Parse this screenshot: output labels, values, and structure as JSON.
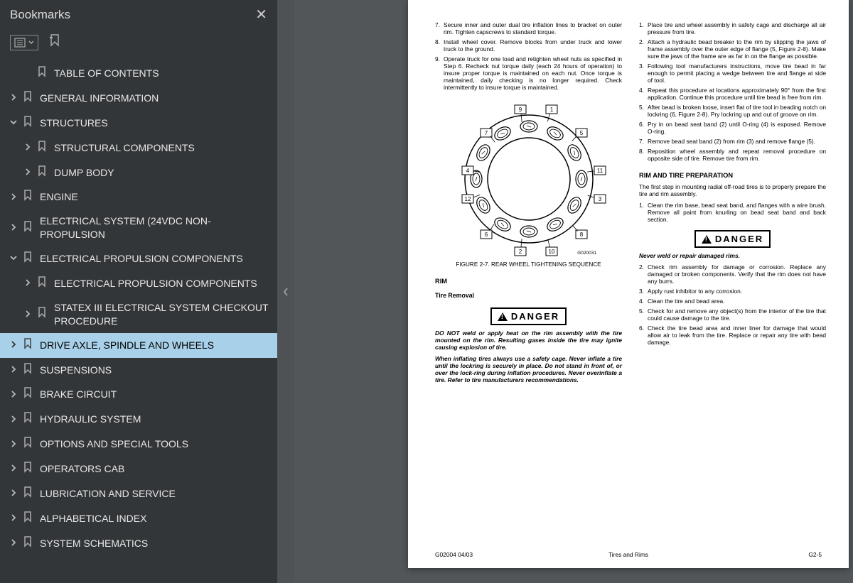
{
  "sidebar": {
    "title": "Bookmarks",
    "items": [
      {
        "label": "TABLE OF CONTENTS",
        "chev": "",
        "indent": 1
      },
      {
        "label": "GENERAL INFORMATION",
        "chev": "›",
        "indent": 0
      },
      {
        "label": "STRUCTURES",
        "chev": "⌄",
        "indent": 0
      },
      {
        "label": "STRUCTURAL COMPONENTS",
        "chev": "›",
        "indent": 1
      },
      {
        "label": "DUMP BODY",
        "chev": "›",
        "indent": 1
      },
      {
        "label": "ENGINE",
        "chev": "›",
        "indent": 0
      },
      {
        "label": "ELECTRICAL SYSTEM (24VDC NON-PROPULSION",
        "chev": "›",
        "indent": 0
      },
      {
        "label": "ELECTRICAL PROPULSION COMPONENTS",
        "chev": "⌄",
        "indent": 0
      },
      {
        "label": "ELECTRICAL PROPULSION COMPONENTS",
        "chev": "›",
        "indent": 1
      },
      {
        "label": "STATEX III ELECTRICAL SYSTEM CHECKOUT PROCEDURE",
        "chev": "›",
        "indent": 1
      },
      {
        "label": "DRIVE AXLE, SPINDLE AND WHEELS",
        "chev": "›",
        "indent": 0,
        "selected": true
      },
      {
        "label": "SUSPENSIONS",
        "chev": "›",
        "indent": 0
      },
      {
        "label": "BRAKE CIRCUIT",
        "chev": "›",
        "indent": 0
      },
      {
        "label": "HYDRAULIC SYSTEM",
        "chev": "›",
        "indent": 0
      },
      {
        "label": "OPTIONS AND SPECIAL TOOLS",
        "chev": "›",
        "indent": 0
      },
      {
        "label": "OPERATORS CAB",
        "chev": "›",
        "indent": 0
      },
      {
        "label": "LUBRICATION AND SERVICE",
        "chev": "›",
        "indent": 0
      },
      {
        "label": "ALPHABETICAL INDEX",
        "chev": "›",
        "indent": 0
      },
      {
        "label": "SYSTEM SCHEMATICS",
        "chev": "›",
        "indent": 0
      }
    ]
  },
  "colors": {
    "sidebar_bg": "#333639",
    "selected_bg": "#a8d0e8",
    "page_bg": "#ffffff",
    "doc_bg": "#525659"
  },
  "doc": {
    "left_list1": [
      {
        "n": "7.",
        "t": "Secure inner and outer dual tire inflation lines to bracket on outer rim. Tighten capscrews to standard torque."
      },
      {
        "n": "8.",
        "t": "Install wheel cover. Remove blocks from under truck and lower truck to the ground."
      },
      {
        "n": "9.",
        "t": "Operate truck for one load and retighten wheel nuts as specified in Step 6. Recheck nut torque daily (each 24 hours of operation) to insure proper torque is maintained on each nut. Once torque is maintained, daily checking is no longer required. Check intermittently to insure torque is maintained."
      }
    ],
    "figure": {
      "caption": "FIGURE 2-7. REAR WHEEL TIGHTENING SEQUENCE",
      "labels": [
        "9",
        "1",
        "7",
        "5",
        "4",
        "11",
        "12",
        "3",
        "6",
        "8",
        "2",
        "10"
      ],
      "code": "G020031",
      "nut_count": 12
    },
    "rim_heading": "RIM",
    "tire_removal": "Tire Removal",
    "danger1": "DANGER",
    "warn1a": "DO NOT weld or apply heat on the rim assembly with the tire mounted on the rim. Resulting gases inside the tire may ignite causing explosion of tire.",
    "warn1b": "When inflating tires always use a safety cage. Never inflate a tire until the lockring is securely in place. Do not stand in front of, or over the lock-ring during inflation procedures. Never overinflate a tire. Refer to tire manufacturers recommendations.",
    "right_list1": [
      {
        "n": "1.",
        "t": "Place tire and wheel assembly in safety cage and discharge all air pressure from tire."
      },
      {
        "n": "2.",
        "t": "Attach a hydraulic bead breaker to the rim by slipping the jaws of frame assembly over the outer edge of flange (5, Figure 2-8). Make sure the jaws of the frame are as far in on the flange as possible."
      },
      {
        "n": "3.",
        "t": "Following tool manufacturers instructions, move tire bead in far enough to permit placing a wedge between tire and flange at side of tool."
      },
      {
        "n": "4.",
        "t": "Repeat this procedure at locations approximately 90° from the first application. Continue this procedure until tire bead is free from rim."
      },
      {
        "n": "5.",
        "t": "After bead is broken loose, insert flat of tire tool in beading notch on lockring (6, Figure 2-8). Pry lockring up and out of groove on rim."
      },
      {
        "n": "6.",
        "t": "Pry in on bead seat band (2) until O-ring (4) is exposed. Remove O-ring."
      },
      {
        "n": "7.",
        "t": "Remove bead seat band (2) from rim (3) and remove flange (5)."
      },
      {
        "n": "8.",
        "t": "Reposition wheel assembly and repeat removal procedure on opposite side of tire. Remove tire from rim."
      }
    ],
    "prep_heading": "RIM AND TIRE PREPARATION",
    "prep_intro": "The first step in mounting radial off-road tires is to properly prepare the tire and rim assembly.",
    "prep_list1": [
      {
        "n": "1.",
        "t": "Clean the rim base, bead seat band, and flanges with a wire brush. Remove all paint from knurling on bead seat band and back section."
      }
    ],
    "danger2": "DANGER",
    "warn2": "Never weld or repair damaged rims.",
    "prep_list2": [
      {
        "n": "2.",
        "t": "Check rim assembly for damage or corrosion. Replace any damaged or broken components. Verify that the rim does not have any burrs."
      },
      {
        "n": "3.",
        "t": "Apply rust inhibitor to any corrosion."
      },
      {
        "n": "4.",
        "t": "Clean the tire and bead area."
      },
      {
        "n": "5.",
        "t": "Check for and remove any object(s) from the interior of the tire that could cause damage to the tire."
      },
      {
        "n": "6.",
        "t": "Check the tire bead area and inner liner for damage that would allow air to leak from the tire. Replace or repair any tire with bead damage."
      }
    ],
    "footer": {
      "left": "G02004  04/03",
      "center": "Tires and Rims",
      "right": "G2-5"
    }
  }
}
